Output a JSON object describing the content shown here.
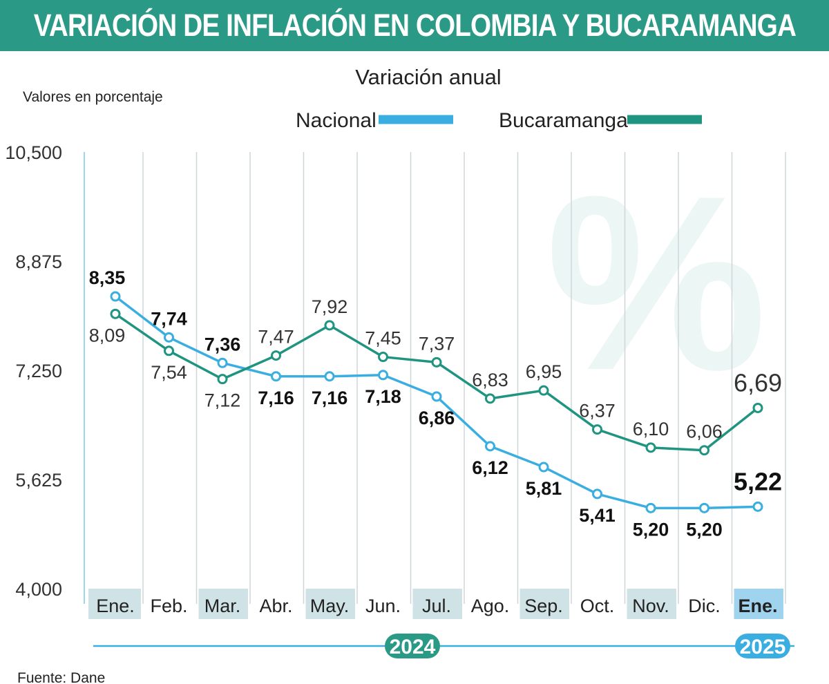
{
  "header": {
    "title": "VARIACIÓN DE INFLACIÓN EN COLOMBIA Y BUCARAMANGA"
  },
  "subtitle": "Variación anual",
  "units_label": "Valores en porcentaje",
  "source": "Fuente: Dane",
  "watermark": "%",
  "colors": {
    "banner": "#2a9a86",
    "nacional": "#3aaee0",
    "bucaramanga": "#1f9480",
    "month_band": "#cfe3e6",
    "month_band_current": "#9fd3ee",
    "timeline": "#3aaee0",
    "year_badge_2024": "#2a9a86",
    "year_badge_2025": "#3aaee0"
  },
  "chart_data": {
    "type": "line",
    "title": "VARIACIÓN DE INFLACIÓN EN COLOMBIA Y BUCARAMANGA",
    "subtitle": "Variación anual",
    "ylabel": "Valores en porcentaje",
    "ylim": [
      4.0,
      10.5
    ],
    "yticks": [
      4.0,
      5.625,
      7.25,
      8.875,
      10.5
    ],
    "ytick_labels": [
      "4,000",
      "5,625",
      "7,250",
      "8,875",
      "10,500"
    ],
    "categories": [
      "Ene.",
      "Feb.",
      "Mar.",
      "Abr.",
      "May.",
      "Jun.",
      "Jul.",
      "Ago.",
      "Sep.",
      "Oct.",
      "Nov.",
      "Dic.",
      "Ene."
    ],
    "highlighted_categories": [
      0,
      2,
      4,
      6,
      8,
      10
    ],
    "current_category": 12,
    "years": [
      {
        "label": "2024",
        "start": 0,
        "end": 11
      },
      {
        "label": "2025",
        "start": 12,
        "end": 12
      }
    ],
    "legend": {
      "position": "top",
      "entries": [
        "Nacional",
        "Bucaramanga"
      ]
    },
    "grid": {
      "vertical": true,
      "horizontal": false
    },
    "series": [
      {
        "name": "Nacional",
        "color": "#3aaee0",
        "values": [
          8.35,
          7.74,
          7.36,
          7.16,
          7.16,
          7.18,
          6.86,
          6.12,
          5.81,
          5.41,
          5.2,
          5.2,
          5.22
        ],
        "labels": [
          "8,35",
          "7,74",
          "7,36",
          "7,16",
          "7,16",
          "7,18",
          "6,86",
          "6,12",
          "5,81",
          "5,41",
          "5,20",
          "5,20",
          "5,22"
        ]
      },
      {
        "name": "Bucaramanga",
        "color": "#1f9480",
        "values": [
          8.09,
          7.54,
          7.12,
          7.47,
          7.92,
          7.45,
          7.37,
          6.83,
          6.95,
          6.37,
          6.1,
          6.06,
          6.69
        ],
        "labels": [
          "8,09",
          "7,54",
          "7,12",
          "7,47",
          "7,92",
          "7,45",
          "7,37",
          "6,83",
          "6,95",
          "6,37",
          "6,10",
          "6,06",
          "6,69"
        ]
      }
    ]
  }
}
